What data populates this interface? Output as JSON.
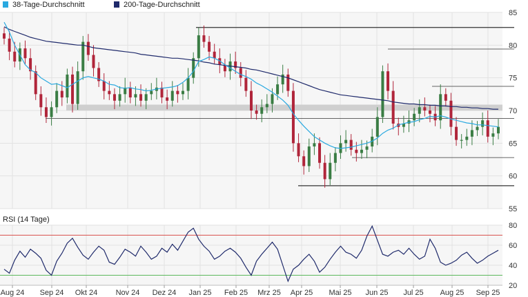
{
  "chart_data": [
    {
      "type": "candlestick",
      "legend": [
        {
          "name": "38-Tage-Durchschnitt",
          "color": "#2aa9e0"
        },
        {
          "name": "200-Tage-Durchschnitt",
          "color": "#1f2a6b"
        }
      ],
      "legend_placement": "top-left",
      "ylim": [
        55,
        85
      ],
      "y_ticks": [
        55,
        60,
        65,
        70,
        75,
        80,
        85
      ],
      "x_ticks": [
        "Aug 24",
        "Sep 24",
        "Okt 24",
        "Nov 24",
        "Dez 24",
        "Jan 25",
        "Feb 25",
        "Mrz 25",
        "Apr 25",
        "Mai 25",
        "Jun 25",
        "Jul 25",
        "Aug 25",
        "Sep 25"
      ],
      "grid": true,
      "colors": {
        "up": "#3a7d44",
        "down": "#b0253a",
        "ma38": "#2aa9e0",
        "ma200": "#1f2a6b",
        "zone": "#cfcfcf",
        "level": "#333333"
      },
      "support_resistance_levels": [
        82.7,
        79.4,
        73.7,
        68.8,
        62.8,
        58.5
      ],
      "highlighted_zone": [
        70.0,
        70.9
      ],
      "close_series": [
        81.0,
        79.0,
        77.5,
        79.5,
        78.0,
        76.0,
        72.5,
        70.5,
        69.0,
        70.5,
        73.0,
        72.0,
        75.5,
        71.0,
        76.0,
        80.5,
        78.5,
        76.5,
        74.5,
        73.0,
        72.5,
        71.5,
        72.5,
        73.5,
        72.0,
        72.5,
        71.5,
        72.5,
        73.0,
        73.5,
        72.0,
        71.5,
        73.0,
        72.5,
        73.0,
        75.0,
        78.0,
        81.5,
        80.5,
        79.0,
        78.0,
        77.0,
        76.0,
        77.5,
        76.5,
        75.0,
        73.0,
        70.0,
        69.5,
        70.5,
        71.0,
        72.5,
        74.0,
        75.5,
        73.0,
        65.0,
        63.0,
        61.5,
        64.5,
        65.0,
        62.0,
        59.5,
        62.0,
        63.5,
        65.0,
        65.5,
        64.0,
        63.5,
        64.0,
        64.5,
        66.0,
        69.0,
        76.0,
        73.0,
        68.0,
        67.5,
        68.0,
        68.5,
        69.5,
        70.5,
        70.0,
        69.5,
        68.5,
        72.5,
        71.5,
        67.5,
        65.5,
        65.5,
        66.0,
        67.0,
        67.5,
        68.5,
        66.0,
        66.5,
        67.5
      ],
      "ma38": [
        83.5,
        82.0,
        80.0,
        78.5,
        77.0,
        76.2,
        75.8,
        75.0,
        74.5,
        74.0,
        74.1,
        73.8,
        73.5,
        74.0,
        74.5,
        75.0,
        75.2,
        75.0,
        74.8,
        74.5,
        74.0,
        73.9,
        73.5,
        73.4,
        73.5,
        73.3,
        73.2,
        73.0,
        73.1,
        73.3,
        73.4,
        73.5,
        73.6,
        73.8,
        74.3,
        75.0,
        76.0,
        77.5,
        77.8,
        78.2,
        78.0,
        77.6,
        77.0,
        76.5,
        76.0,
        75.5,
        75.2,
        74.8,
        74.2,
        73.8,
        73.3,
        72.8,
        72.2,
        71.6,
        70.8,
        69.5,
        68.5,
        67.6,
        66.8,
        66.0,
        65.5,
        65.0,
        64.6,
        64.3,
        64.2,
        64.3,
        64.4,
        64.6,
        64.8,
        65.0,
        65.3,
        65.8,
        66.5,
        67.0,
        67.3,
        67.8,
        68.0,
        68.2,
        68.3,
        68.6,
        68.8,
        69.1,
        69.0,
        69.2,
        69.0,
        68.7,
        68.5,
        68.3,
        68.1,
        68.0,
        67.8,
        67.8,
        67.7,
        67.6,
        67.5
      ],
      "ma200": [
        82.8,
        82.4,
        82.1,
        81.8,
        81.5,
        81.2,
        81.0,
        80.8,
        80.6,
        80.5,
        80.4,
        80.3,
        80.2,
        80.1,
        80.0,
        80.0,
        79.8,
        79.6,
        79.5,
        79.4,
        79.3,
        79.2,
        79.1,
        79.0,
        78.9,
        78.8,
        78.6,
        78.5,
        78.4,
        78.3,
        78.2,
        78.1,
        78.0,
        78.0,
        77.9,
        77.8,
        77.7,
        77.6,
        77.4,
        77.3,
        77.1,
        77.0,
        76.9,
        76.8,
        76.7,
        76.6,
        76.5,
        76.3,
        76.2,
        76.0,
        75.8,
        75.6,
        75.4,
        75.2,
        75.0,
        74.7,
        74.4,
        74.1,
        73.8,
        73.5,
        73.2,
        73.0,
        72.8,
        72.6,
        72.4,
        72.3,
        72.2,
        72.1,
        72.0,
        71.9,
        71.8,
        71.7,
        71.6,
        71.5,
        71.3,
        71.2,
        71.1,
        71.0,
        71.0,
        70.9,
        70.9,
        70.8,
        70.8,
        70.7,
        70.7,
        70.6,
        70.6,
        70.5,
        70.5,
        70.4,
        70.4,
        70.3,
        70.3,
        70.2,
        70.2
      ]
    },
    {
      "type": "line",
      "title": "RSI (14 Tage)",
      "ylim": [
        20,
        80
      ],
      "y_ticks": [
        20,
        40,
        60,
        80
      ],
      "reference_lines": [
        70,
        30
      ],
      "colors": {
        "line": "#1f2a6b",
        "upper": "#d9534f",
        "lower": "#5cb85c"
      },
      "values": [
        36,
        32,
        45,
        54,
        48,
        56,
        52,
        47,
        35,
        30,
        44,
        52,
        62,
        67,
        58,
        50,
        46,
        53,
        59,
        55,
        43,
        41,
        48,
        56,
        53,
        49,
        59,
        53,
        46,
        49,
        57,
        53,
        61,
        55,
        64,
        73,
        77,
        66,
        59,
        54,
        46,
        49,
        54,
        57,
        53,
        47,
        38,
        30,
        44,
        51,
        57,
        63,
        56,
        40,
        24,
        36,
        40,
        46,
        51,
        44,
        33,
        38,
        46,
        53,
        59,
        53,
        51,
        47,
        55,
        69,
        79,
        65,
        51,
        49,
        53,
        55,
        51,
        57,
        51,
        46,
        49,
        66,
        57,
        43,
        40,
        42,
        45,
        50,
        53,
        47,
        42,
        45,
        49,
        52,
        55
      ]
    }
  ]
}
